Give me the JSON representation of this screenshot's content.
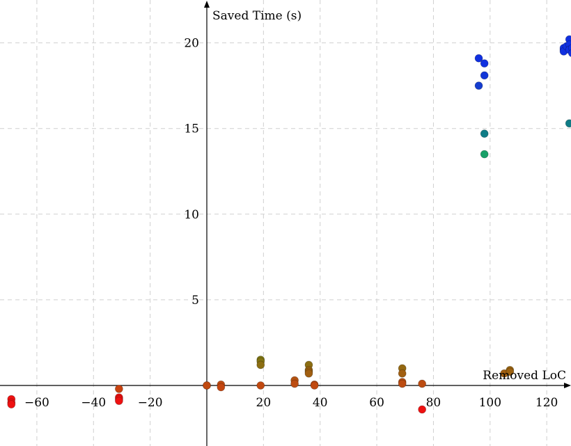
{
  "chart_data": {
    "type": "scatter",
    "xlabel": "Removed LoC",
    "ylabel": "Saved Time (s)",
    "xlim": [
      -68,
      130
    ],
    "ylim": [
      -3.5,
      22.5
    ],
    "x_ticks": [
      -60,
      -40,
      -20,
      20,
      40,
      60,
      80,
      100,
      120
    ],
    "x_tick_labels": [
      "−60",
      "−40",
      "−20",
      "20",
      "40",
      "60",
      "80",
      "100",
      "120"
    ],
    "y_ticks": [
      5,
      10,
      15,
      20
    ],
    "y_tick_labels": [
      "5",
      "10",
      "15",
      "20"
    ],
    "grid": true,
    "color_scale": "saved time: low = red, mid = olive, high = blue",
    "colors": {
      "low": "#ee1111",
      "mid": "#7a7a12",
      "high_green": "#18a068",
      "high_teal": "#0f7c86",
      "high": "#1030e0"
    },
    "points": [
      {
        "x": -69,
        "y": -0.8
      },
      {
        "x": -69,
        "y": -1.0
      },
      {
        "x": -69,
        "y": -1.1
      },
      {
        "x": -31,
        "y": -0.2
      },
      {
        "x": -31,
        "y": -0.7
      },
      {
        "x": -31,
        "y": -0.8
      },
      {
        "x": -31,
        "y": -0.9
      },
      {
        "x": 0,
        "y": 0.0
      },
      {
        "x": 0,
        "y": 0.0
      },
      {
        "x": 5,
        "y": 0.05
      },
      {
        "x": 5,
        "y": -0.1
      },
      {
        "x": 19,
        "y": 1.5
      },
      {
        "x": 19,
        "y": 1.4
      },
      {
        "x": 19,
        "y": 1.2
      },
      {
        "x": 19,
        "y": 0.0
      },
      {
        "x": 31,
        "y": 0.3
      },
      {
        "x": 31,
        "y": 0.1
      },
      {
        "x": 36,
        "y": 1.2
      },
      {
        "x": 36,
        "y": 0.9
      },
      {
        "x": 36,
        "y": 0.8
      },
      {
        "x": 36,
        "y": 0.7
      },
      {
        "x": 38,
        "y": 0.05
      },
      {
        "x": 38,
        "y": 0.0
      },
      {
        "x": 69,
        "y": 1.0
      },
      {
        "x": 69,
        "y": 0.7
      },
      {
        "x": 69,
        "y": 0.2
      },
      {
        "x": 69,
        "y": 0.1
      },
      {
        "x": 76,
        "y": 0.1
      },
      {
        "x": 76,
        "y": -1.4
      },
      {
        "x": 105,
        "y": 0.7
      },
      {
        "x": 107,
        "y": 0.9
      },
      {
        "x": 107,
        "y": 0.8
      },
      {
        "x": 96,
        "y": 19.1
      },
      {
        "x": 98,
        "y": 18.8
      },
      {
        "x": 98,
        "y": 18.1
      },
      {
        "x": 96,
        "y": 17.5
      },
      {
        "x": 98,
        "y": 14.7
      },
      {
        "x": 98,
        "y": 13.5
      },
      {
        "x": 126,
        "y": 19.6
      },
      {
        "x": 126,
        "y": 19.7
      },
      {
        "x": 126,
        "y": 19.5
      },
      {
        "x": 127,
        "y": 19.8
      },
      {
        "x": 128,
        "y": 20.2
      },
      {
        "x": 128,
        "y": 19.9
      },
      {
        "x": 128,
        "y": 19.6
      },
      {
        "x": 129,
        "y": 19.7
      },
      {
        "x": 129,
        "y": 19.4
      },
      {
        "x": 130,
        "y": 19.6
      },
      {
        "x": 130,
        "y": 19.5
      },
      {
        "x": 128,
        "y": 15.3
      },
      {
        "x": 130,
        "y": 15.3
      }
    ]
  }
}
